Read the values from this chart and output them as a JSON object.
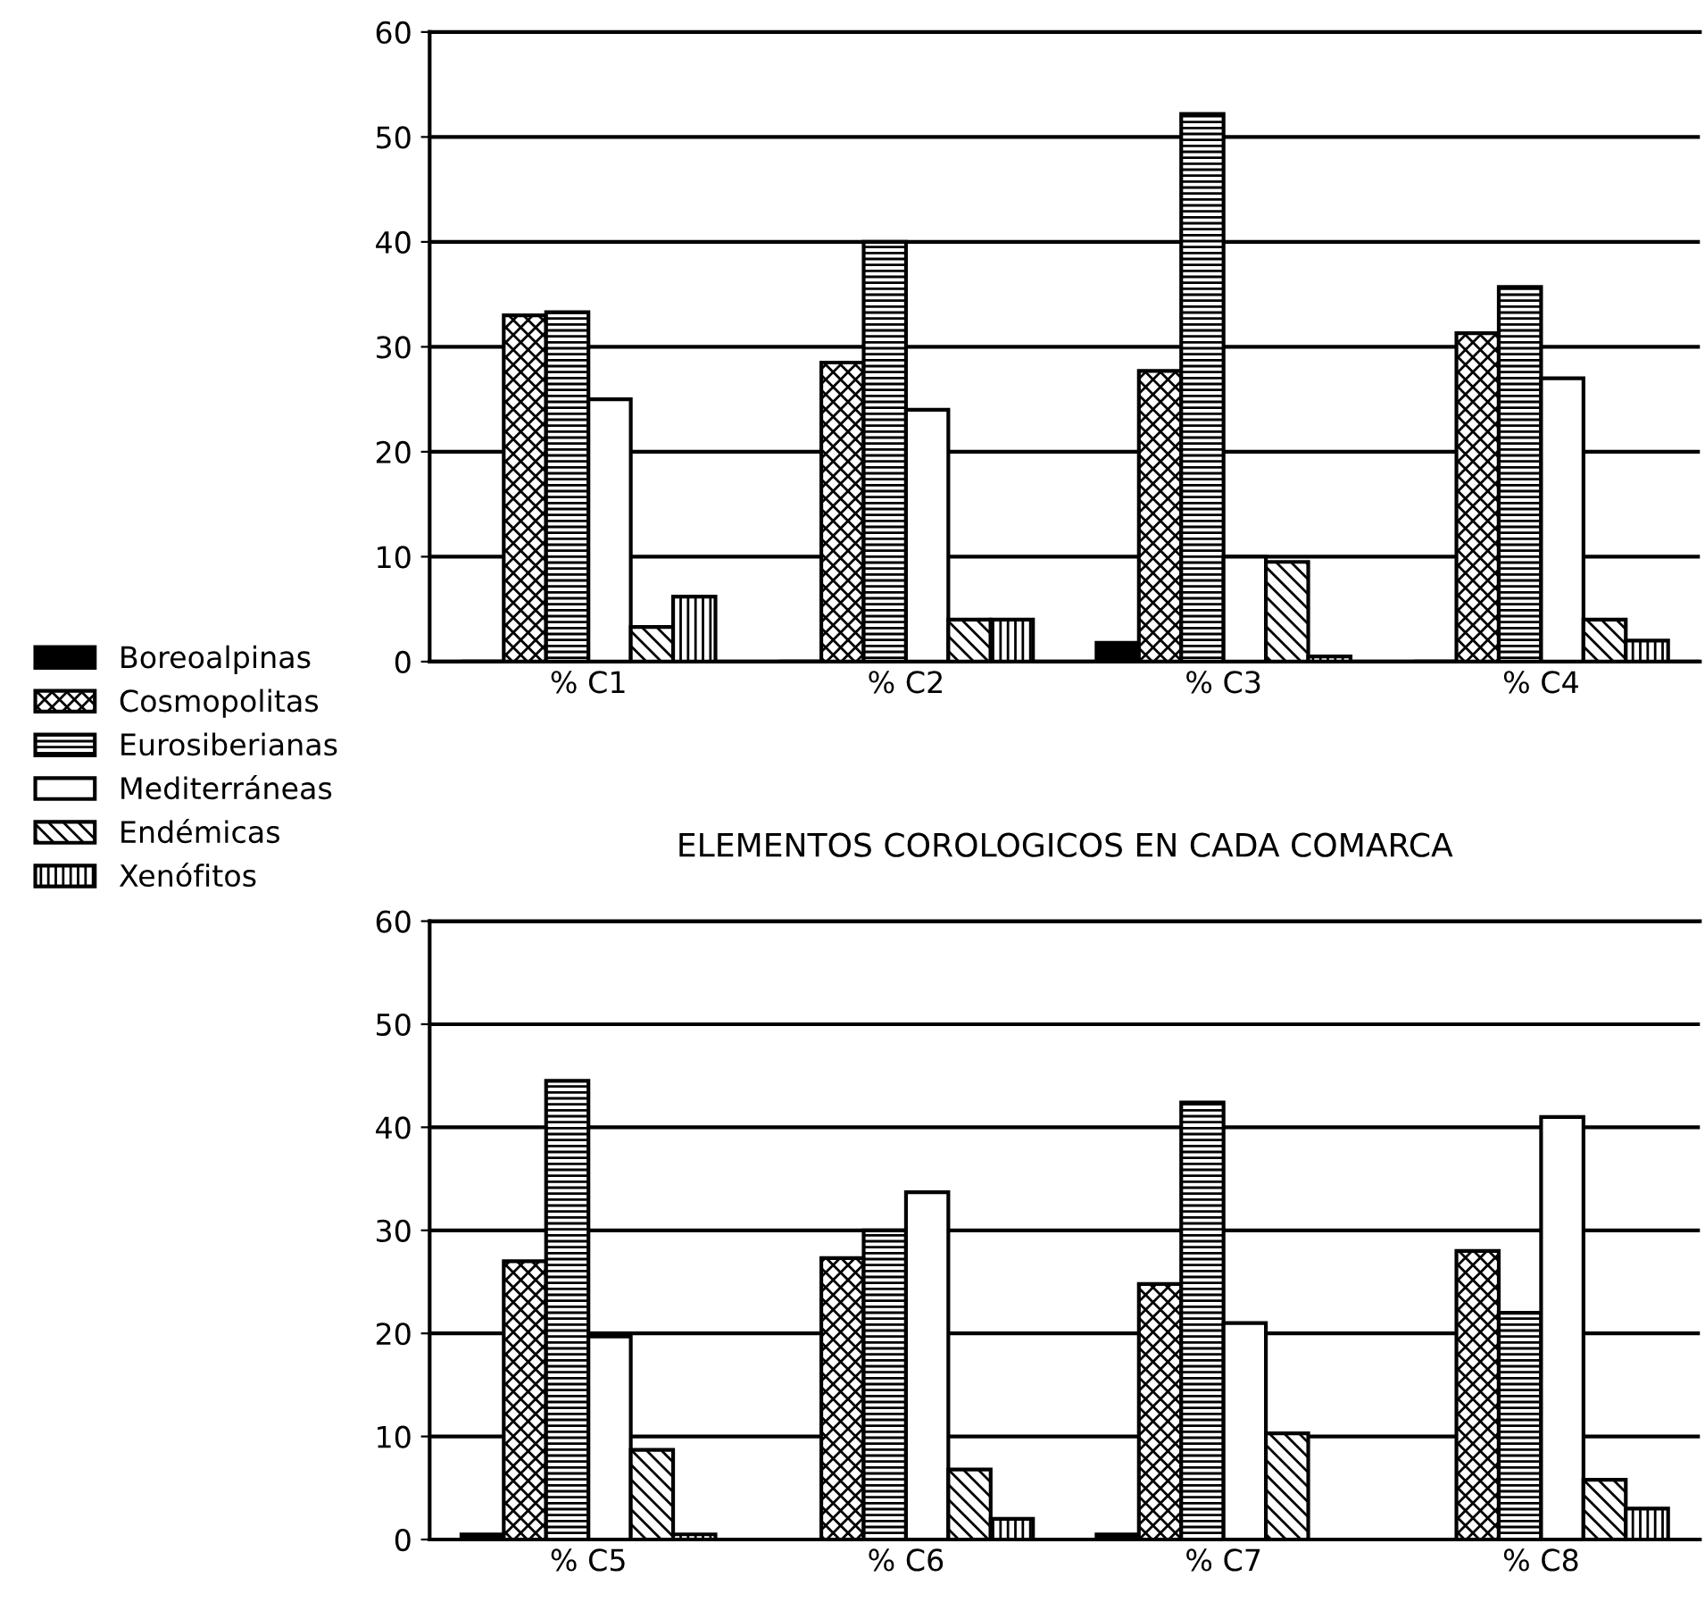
{
  "chart_data": [
    {
      "type": "bar",
      "categories": [
        "% C1",
        "% C2",
        "% C3",
        "% C4"
      ],
      "ylim": [
        0,
        60
      ],
      "yticks": [
        0,
        10,
        20,
        30,
        40,
        50,
        60
      ],
      "grid": "y",
      "legend": "left",
      "series": [
        {
          "name": "Boreoalpinas",
          "color": "#000000",
          "values": [
            0,
            0,
            1.8,
            0
          ]
        },
        {
          "name": "Cosmopolitas",
          "color": "#000000",
          "values": [
            33,
            28.5,
            27.7,
            31.3
          ]
        },
        {
          "name": "Eurosiberianas",
          "color": "#000000",
          "values": [
            33.3,
            40,
            52.2,
            35.7
          ]
        },
        {
          "name": "Mediterráneas",
          "color": "#ffffff",
          "values": [
            25,
            24,
            10,
            27
          ]
        },
        {
          "name": "Endémicas",
          "color": "#000000",
          "values": [
            3.3,
            4,
            9.5,
            4
          ]
        },
        {
          "name": "Xenófitos",
          "color": "#000000",
          "values": [
            6.2,
            4,
            0.5,
            2
          ]
        }
      ]
    },
    {
      "type": "bar",
      "title": "ELEMENTOS COROLOGICOS EN CADA COMARCA",
      "categories": [
        "% C5",
        "% C6",
        "% C7",
        "% C8"
      ],
      "ylim": [
        0,
        60
      ],
      "yticks": [
        0,
        10,
        20,
        30,
        40,
        50,
        60
      ],
      "grid": "y",
      "series": [
        {
          "color": "#000000",
          "values": [
            0.5,
            0,
            0.5,
            0
          ]
        },
        {
          "color": "#000000",
          "values": [
            27,
            27.3,
            24.8,
            28
          ]
        },
        {
          "color": "#000000",
          "values": [
            44.5,
            30,
            42.4,
            22
          ]
        },
        {
          "color": "#ffffff",
          "values": [
            19.7,
            33.7,
            21,
            41
          ]
        },
        {
          "color": "#000000",
          "values": [
            8.7,
            6.8,
            10.3,
            5.8
          ]
        },
        {
          "color": "#000000",
          "values": [
            0.5,
            2,
            0,
            3
          ]
        }
      ]
    }
  ]
}
